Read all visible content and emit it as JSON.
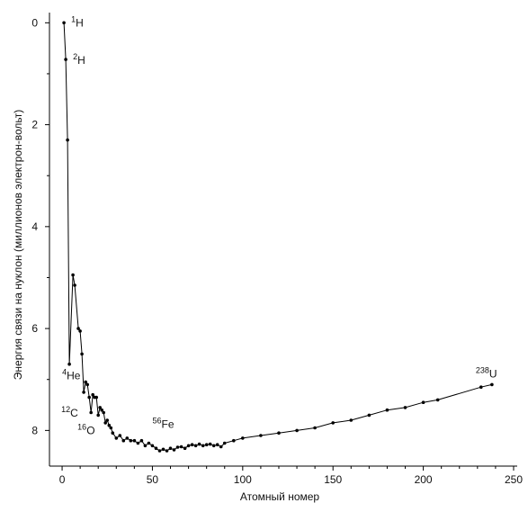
{
  "chart_data": {
    "type": "scatter",
    "xlabel": "Атомный номер",
    "ylabel": "Энергия связи на нуклон (миллионов электрон-вольт)",
    "xlim": [
      -7,
      252
    ],
    "ylim": [
      8.7,
      -0.2
    ],
    "y_inverted": true,
    "grid": false,
    "xticks": [
      "0",
      "50",
      "100",
      "150",
      "200",
      "250"
    ],
    "yticks": [
      "0",
      "2",
      "4",
      "6",
      "8"
    ],
    "annotations": [
      {
        "sup": "1",
        "text": "H"
      },
      {
        "sup": "2",
        "text": "H"
      },
      {
        "sup": "4",
        "text": "He"
      },
      {
        "sup": "12",
        "text": "C"
      },
      {
        "sup": "16",
        "text": "O"
      },
      {
        "sup": "56",
        "text": "Fe"
      },
      {
        "sup": "238",
        "text": "U"
      }
    ],
    "series": [
      {
        "x": [
          1,
          2,
          3,
          4,
          6,
          7,
          9,
          10,
          11,
          12,
          13,
          14,
          15,
          16,
          17,
          18,
          19,
          20,
          21,
          22,
          23,
          24,
          25,
          26,
          27,
          28,
          30,
          32,
          34,
          36,
          38,
          40,
          42,
          44,
          46,
          48,
          50,
          52,
          54,
          56,
          58,
          60,
          62,
          64,
          66,
          68,
          70,
          72,
          74,
          76,
          78,
          80,
          82,
          84,
          86,
          88,
          90,
          95,
          100,
          110,
          120,
          130,
          140,
          150,
          160,
          170,
          180,
          190,
          200,
          208,
          232,
          238
        ],
        "y": [
          0,
          0.72,
          2.3,
          6.7,
          4.95,
          5.15,
          6.0,
          6.05,
          6.5,
          7.25,
          7.05,
          7.1,
          7.35,
          7.65,
          7.3,
          7.35,
          7.35,
          7.7,
          7.55,
          7.6,
          7.65,
          7.85,
          7.8,
          7.9,
          7.95,
          8.05,
          8.15,
          8.1,
          8.2,
          8.15,
          8.2,
          8.2,
          8.25,
          8.2,
          8.3,
          8.25,
          8.3,
          8.35,
          8.4,
          8.37,
          8.4,
          8.35,
          8.38,
          8.33,
          8.32,
          8.35,
          8.3,
          8.28,
          8.3,
          8.27,
          8.3,
          8.28,
          8.27,
          8.3,
          8.28,
          8.32,
          8.25,
          8.2,
          8.15,
          8.1,
          8.05,
          8.0,
          7.95,
          7.85,
          7.8,
          7.7,
          7.6,
          7.55,
          7.45,
          7.4,
          7.15,
          7.1
        ]
      }
    ]
  }
}
